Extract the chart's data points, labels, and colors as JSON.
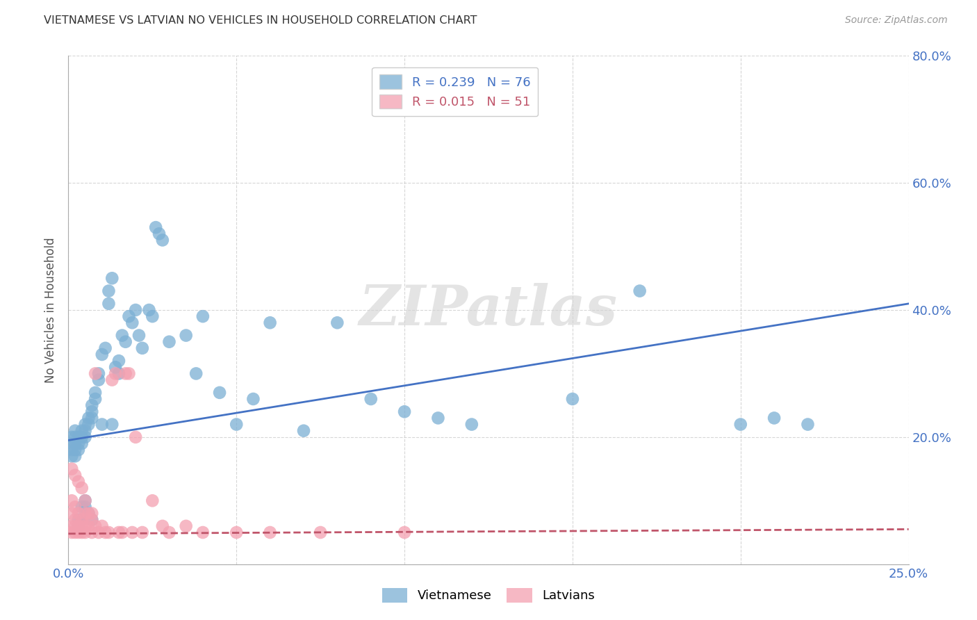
{
  "title": "VIETNAMESE VS LATVIAN NO VEHICLES IN HOUSEHOLD CORRELATION CHART",
  "source": "Source: ZipAtlas.com",
  "ylabel_label": "No Vehicles in Household",
  "xlim": [
    0.0,
    0.25
  ],
  "ylim": [
    0.0,
    0.8
  ],
  "xticks": [
    0.0,
    0.05,
    0.1,
    0.15,
    0.2,
    0.25
  ],
  "xticklabels": [
    "0.0%",
    "",
    "",
    "",
    "",
    "25.0%"
  ],
  "yticks": [
    0.0,
    0.2,
    0.4,
    0.6,
    0.8
  ],
  "yticklabels_right": [
    "",
    "20.0%",
    "40.0%",
    "60.0%",
    "80.0%"
  ],
  "background_color": "#ffffff",
  "grid_color": "#cccccc",
  "watermark": "ZIPatlas",
  "vietnamese_color": "#7bafd4",
  "latvian_color": "#f4a0b0",
  "vietnamese_line_color": "#4472c4",
  "latvian_line_color": "#c0556a",
  "vietnamese_R": 0.239,
  "vietnamese_N": 76,
  "latvian_R": 0.015,
  "latvian_N": 51,
  "viet_line_y0": 0.195,
  "viet_line_y1": 0.41,
  "lat_line_y0": 0.048,
  "lat_line_y1": 0.055,
  "vietnamese_x": [
    0.001,
    0.001,
    0.001,
    0.001,
    0.002,
    0.002,
    0.002,
    0.002,
    0.002,
    0.003,
    0.003,
    0.003,
    0.003,
    0.003,
    0.004,
    0.004,
    0.004,
    0.004,
    0.004,
    0.005,
    0.005,
    0.005,
    0.005,
    0.005,
    0.006,
    0.006,
    0.006,
    0.007,
    0.007,
    0.007,
    0.007,
    0.008,
    0.008,
    0.009,
    0.009,
    0.01,
    0.01,
    0.011,
    0.012,
    0.012,
    0.013,
    0.013,
    0.014,
    0.015,
    0.015,
    0.016,
    0.017,
    0.018,
    0.019,
    0.02,
    0.021,
    0.022,
    0.024,
    0.025,
    0.026,
    0.027,
    0.028,
    0.03,
    0.035,
    0.038,
    0.04,
    0.045,
    0.05,
    0.055,
    0.06,
    0.07,
    0.08,
    0.09,
    0.1,
    0.11,
    0.12,
    0.15,
    0.17,
    0.2,
    0.21,
    0.22
  ],
  "vietnamese_y": [
    0.2,
    0.19,
    0.18,
    0.17,
    0.21,
    0.2,
    0.19,
    0.18,
    0.17,
    0.2,
    0.19,
    0.18,
    0.07,
    0.06,
    0.21,
    0.2,
    0.19,
    0.09,
    0.07,
    0.22,
    0.21,
    0.2,
    0.1,
    0.09,
    0.23,
    0.22,
    0.08,
    0.25,
    0.24,
    0.23,
    0.07,
    0.27,
    0.26,
    0.3,
    0.29,
    0.33,
    0.22,
    0.34,
    0.43,
    0.41,
    0.45,
    0.22,
    0.31,
    0.32,
    0.3,
    0.36,
    0.35,
    0.39,
    0.38,
    0.4,
    0.36,
    0.34,
    0.4,
    0.39,
    0.53,
    0.52,
    0.51,
    0.35,
    0.36,
    0.3,
    0.39,
    0.27,
    0.22,
    0.26,
    0.38,
    0.21,
    0.38,
    0.26,
    0.24,
    0.23,
    0.22,
    0.26,
    0.43,
    0.22,
    0.23,
    0.22
  ],
  "latvian_x": [
    0.001,
    0.001,
    0.001,
    0.001,
    0.001,
    0.002,
    0.002,
    0.002,
    0.002,
    0.002,
    0.003,
    0.003,
    0.003,
    0.003,
    0.004,
    0.004,
    0.004,
    0.004,
    0.005,
    0.005,
    0.005,
    0.005,
    0.006,
    0.006,
    0.007,
    0.007,
    0.007,
    0.008,
    0.008,
    0.009,
    0.01,
    0.011,
    0.012,
    0.013,
    0.014,
    0.015,
    0.016,
    0.017,
    0.018,
    0.019,
    0.02,
    0.022,
    0.025,
    0.028,
    0.03,
    0.035,
    0.04,
    0.05,
    0.06,
    0.075,
    0.1
  ],
  "latvian_y": [
    0.15,
    0.1,
    0.08,
    0.06,
    0.05,
    0.14,
    0.09,
    0.07,
    0.06,
    0.05,
    0.13,
    0.08,
    0.06,
    0.05,
    0.12,
    0.07,
    0.06,
    0.05,
    0.1,
    0.08,
    0.06,
    0.05,
    0.08,
    0.06,
    0.08,
    0.07,
    0.05,
    0.3,
    0.06,
    0.05,
    0.06,
    0.05,
    0.05,
    0.29,
    0.3,
    0.05,
    0.05,
    0.3,
    0.3,
    0.05,
    0.2,
    0.05,
    0.1,
    0.06,
    0.05,
    0.06,
    0.05,
    0.05,
    0.05,
    0.05,
    0.05
  ]
}
